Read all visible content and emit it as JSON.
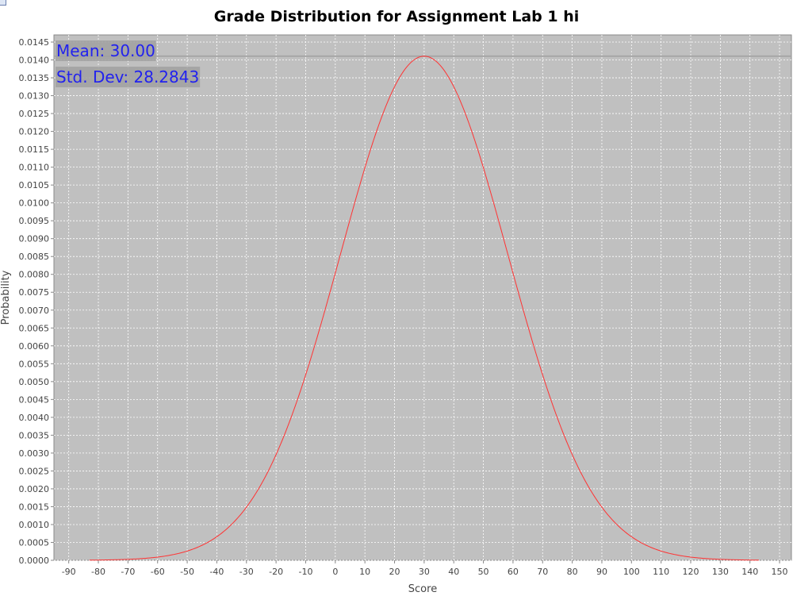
{
  "chart_data": {
    "type": "line",
    "title": "Grade Distribution for Assignment Lab 1 hi",
    "xlabel": "Score",
    "ylabel": "Probability",
    "xlim": [
      -95,
      154
    ],
    "ylim": [
      0,
      0.0147
    ],
    "x_ticks": [
      -90,
      -80,
      -70,
      -60,
      -50,
      -40,
      -30,
      -20,
      -10,
      0,
      10,
      20,
      30,
      40,
      50,
      60,
      70,
      80,
      90,
      100,
      110,
      120,
      130,
      140,
      150
    ],
    "y_ticks": [
      "0.0000",
      "0.0005",
      "0.0010",
      "0.0015",
      "0.0020",
      "0.0025",
      "0.0030",
      "0.0035",
      "0.0040",
      "0.0045",
      "0.0050",
      "0.0055",
      "0.0060",
      "0.0065",
      "0.0070",
      "0.0075",
      "0.0080",
      "0.0085",
      "0.0090",
      "0.0095",
      "0.0100",
      "0.0105",
      "0.0110",
      "0.0115",
      "0.0120",
      "0.0125",
      "0.0130",
      "0.0135",
      "0.0140",
      "0.0145"
    ],
    "series": [
      {
        "color": "#ff3333",
        "distribution": "normal",
        "mean": 30.0,
        "std_dev": 28.2843,
        "x_range": [
          -83,
          143
        ]
      }
    ],
    "annotations": {
      "mean": "Mean: 30.00",
      "std_dev": "Std. Dev: 28.2843"
    },
    "grid": true,
    "plot_background": "#c0c0c0"
  }
}
